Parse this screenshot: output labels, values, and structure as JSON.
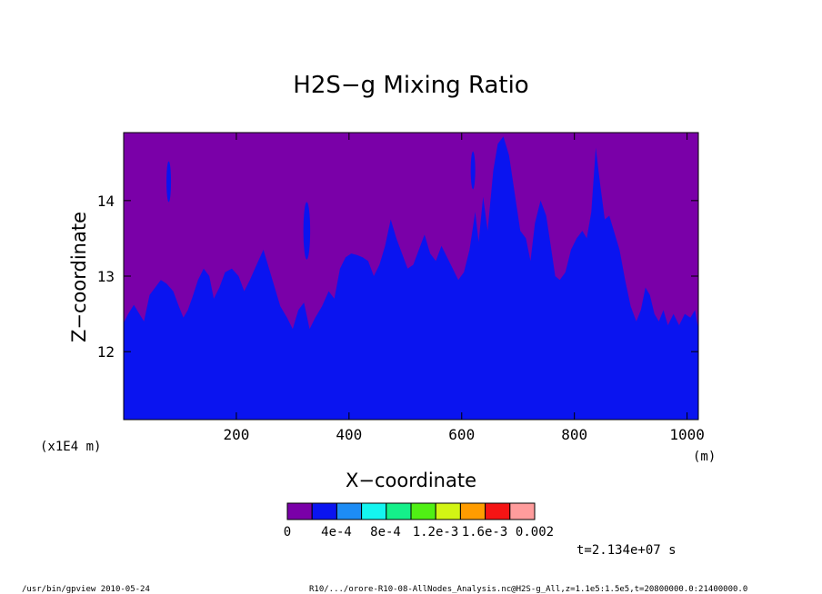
{
  "chart_data": {
    "type": "area",
    "title": "H2S−g Mixing Ratio",
    "xlabel": "X−coordinate",
    "ylabel": "Z−coordinate",
    "x_unit": "(m)",
    "y_scale_label": "(x1E4 m)",
    "xlim": [
      0,
      1020
    ],
    "ylim": [
      11.1,
      14.9
    ],
    "x_ticks": [
      200,
      400,
      600,
      800,
      1000
    ],
    "x_tick_labels": [
      "200",
      "400",
      "600",
      "800",
      "1000"
    ],
    "y_ticks": [
      12,
      13,
      14
    ],
    "y_tick_labels": [
      "12",
      "13",
      "14"
    ],
    "background_color": "#7a00a8",
    "fill_color": "#0a14f0",
    "fill_level": "4e-4",
    "colorbar": {
      "labels": [
        "0",
        "4e-4",
        "8e-4",
        "1.2e-3",
        "1.6e-3",
        "0.002"
      ],
      "colors": [
        "#7a00a8",
        "#0a14f0",
        "#1d8cf5",
        "#14f5f0",
        "#14f08a",
        "#50f014",
        "#d2f514",
        "#ff9c00",
        "#f51414",
        "#ff9c9c"
      ]
    },
    "boundary": [
      [
        0,
        12.38
      ],
      [
        8,
        12.5
      ],
      [
        18,
        12.62
      ],
      [
        28,
        12.5
      ],
      [
        36,
        12.4
      ],
      [
        46,
        12.75
      ],
      [
        56,
        12.85
      ],
      [
        66,
        12.95
      ],
      [
        76,
        12.9
      ],
      [
        88,
        12.8
      ],
      [
        98,
        12.6
      ],
      [
        106,
        12.45
      ],
      [
        114,
        12.55
      ],
      [
        122,
        12.72
      ],
      [
        132,
        12.95
      ],
      [
        142,
        13.1
      ],
      [
        152,
        13.0
      ],
      [
        160,
        12.7
      ],
      [
        170,
        12.85
      ],
      [
        180,
        13.05
      ],
      [
        192,
        13.1
      ],
      [
        204,
        13.0
      ],
      [
        214,
        12.8
      ],
      [
        224,
        12.95
      ],
      [
        236,
        13.15
      ],
      [
        248,
        13.35
      ],
      [
        258,
        13.1
      ],
      [
        268,
        12.85
      ],
      [
        278,
        12.6
      ],
      [
        290,
        12.45
      ],
      [
        300,
        12.3
      ],
      [
        310,
        12.55
      ],
      [
        320,
        12.65
      ],
      [
        330,
        12.3
      ],
      [
        340,
        12.45
      ],
      [
        352,
        12.6
      ],
      [
        364,
        12.8
      ],
      [
        374,
        12.7
      ],
      [
        384,
        13.1
      ],
      [
        394,
        13.25
      ],
      [
        404,
        13.3
      ],
      [
        414,
        13.28
      ],
      [
        424,
        13.25
      ],
      [
        434,
        13.2
      ],
      [
        444,
        13.0
      ],
      [
        454,
        13.15
      ],
      [
        464,
        13.4
      ],
      [
        474,
        13.75
      ],
      [
        484,
        13.5
      ],
      [
        494,
        13.3
      ],
      [
        504,
        13.1
      ],
      [
        514,
        13.15
      ],
      [
        524,
        13.35
      ],
      [
        534,
        13.55
      ],
      [
        544,
        13.3
      ],
      [
        554,
        13.2
      ],
      [
        564,
        13.4
      ],
      [
        574,
        13.25
      ],
      [
        584,
        13.1
      ],
      [
        594,
        12.95
      ],
      [
        604,
        13.05
      ],
      [
        614,
        13.35
      ],
      [
        624,
        13.85
      ],
      [
        630,
        13.45
      ],
      [
        638,
        14.05
      ],
      [
        646,
        13.6
      ],
      [
        656,
        14.4
      ],
      [
        664,
        14.75
      ],
      [
        674,
        14.85
      ],
      [
        684,
        14.6
      ],
      [
        694,
        14.1
      ],
      [
        704,
        13.6
      ],
      [
        714,
        13.5
      ],
      [
        722,
        13.2
      ],
      [
        730,
        13.7
      ],
      [
        740,
        14.0
      ],
      [
        750,
        13.8
      ],
      [
        758,
        13.4
      ],
      [
        766,
        13.0
      ],
      [
        774,
        12.95
      ],
      [
        784,
        13.05
      ],
      [
        794,
        13.35
      ],
      [
        804,
        13.5
      ],
      [
        814,
        13.6
      ],
      [
        822,
        13.5
      ],
      [
        830,
        13.85
      ],
      [
        838,
        14.7
      ],
      [
        846,
        14.2
      ],
      [
        854,
        13.75
      ],
      [
        862,
        13.8
      ],
      [
        872,
        13.55
      ],
      [
        880,
        13.35
      ],
      [
        890,
        12.95
      ],
      [
        900,
        12.6
      ],
      [
        910,
        12.4
      ],
      [
        918,
        12.55
      ],
      [
        926,
        12.85
      ],
      [
        934,
        12.75
      ],
      [
        942,
        12.5
      ],
      [
        950,
        12.4
      ],
      [
        958,
        12.55
      ],
      [
        966,
        12.35
      ],
      [
        976,
        12.5
      ],
      [
        986,
        12.35
      ],
      [
        996,
        12.5
      ],
      [
        1006,
        12.45
      ],
      [
        1014,
        12.55
      ],
      [
        1020,
        12.3
      ]
    ],
    "islands": [
      {
        "cx": 80,
        "cy": 14.25,
        "rx": 4,
        "ry": 0.27
      },
      {
        "cx": 325,
        "cy": 13.6,
        "rx": 6,
        "ry": 0.38
      },
      {
        "cx": 620,
        "cy": 14.4,
        "rx": 4,
        "ry": 0.25
      }
    ]
  },
  "annotations": {
    "time_label": "t=2.134e+07 s",
    "footer_left": "/usr/bin/gpview   2010-05-24",
    "footer_right": "R10/.../orore-R10-08-AllNodes_Analysis.nc@H2S-g_All,z=1.1e5:1.5e5,t=20800000.0:21400000.0"
  }
}
